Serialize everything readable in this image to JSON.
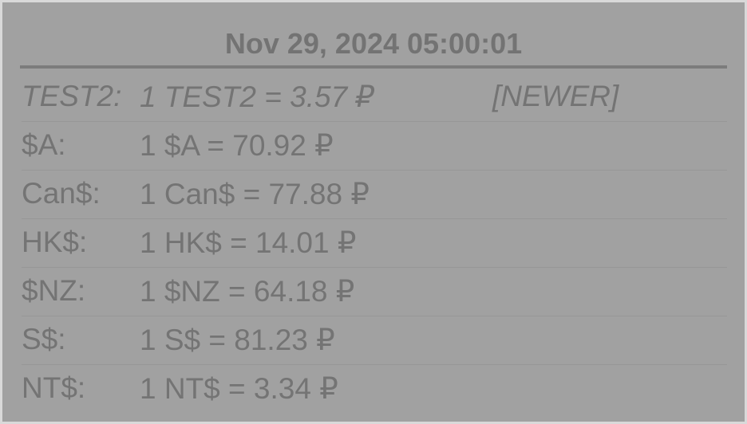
{
  "header": {
    "datetime": "Nov 29, 2024 05:00:01"
  },
  "rates": [
    {
      "code": "TEST2:",
      "rate": "1 TEST2 = 3.57 ₽",
      "tag": "[NEWER]",
      "italic": true
    },
    {
      "code": "$A:",
      "rate": "1 $A = 70.92 ₽",
      "tag": ""
    },
    {
      "code": "Can$:",
      "rate": "1 Can$ = 77.88 ₽",
      "tag": ""
    },
    {
      "code": "HK$:",
      "rate": "1 HK$ = 14.01 ₽",
      "tag": ""
    },
    {
      "code": "$NZ:",
      "rate": "1 $NZ = 64.18 ₽",
      "tag": ""
    },
    {
      "code": "S$:",
      "rate": "1 S$ = 81.23 ₽",
      "tag": ""
    },
    {
      "code": "NT$:",
      "rate": "1 NT$ = 3.34 ₽",
      "tag": ""
    }
  ]
}
